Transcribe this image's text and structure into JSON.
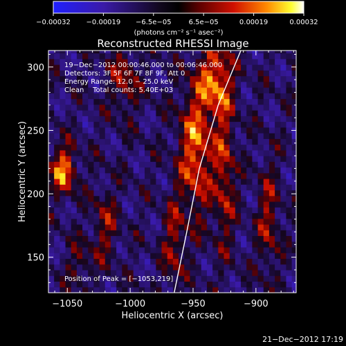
{
  "chart_data": {
    "type": "heatmap",
    "title": "Reconstructed RHESSI Image",
    "xlabel": "Heliocentric X (arcsec)",
    "ylabel": "Heliocentric Y (arcsec)",
    "xlim": [
      -1065,
      -868
    ],
    "ylim": [
      122,
      313
    ],
    "x_ticks": [
      -1050,
      -1000,
      -950,
      -900
    ],
    "x_tick_labels": [
      "−1050",
      "−1000",
      "−950",
      "−900"
    ],
    "y_ticks": [
      150,
      200,
      250,
      300
    ],
    "y_tick_labels": [
      "150",
      "200",
      "250",
      "300"
    ],
    "colorbar": {
      "min": -0.00032,
      "max": 0.00032,
      "colormap": "blue-black-red-yellow-white",
      "tick_labels": [
        "−0.00032",
        "−0.00019",
        "−6.5e−05",
        "6.5e−05",
        "0.00019",
        "0.00032"
      ],
      "units": "(photons cm⁻² s⁻¹ asec⁻²)"
    },
    "annotations": {
      "time_range": "19−Dec−2012 00:00:46.000 to 00:06:46.000",
      "detectors": "Detectors: 3F 5F 6F 7F 8F 9F, Att 0",
      "energy_range": "Energy Range: 12.0 − 25.0 keV",
      "method": "Clean    Total counts: 5.40E+03",
      "peak": "Position of Peak = [−1053,219]"
    },
    "limb_curve": [
      [
        -965,
        122
      ],
      [
        -955,
        170
      ],
      [
        -945,
        220
      ],
      [
        -930,
        270
      ],
      [
        -912,
        313
      ]
    ],
    "sources": [
      {
        "x": -1053,
        "y": 219,
        "sx": 7,
        "sy": 13,
        "amp": 0.9
      },
      {
        "x": -948,
        "y": 235,
        "sx": 9,
        "sy": 35,
        "amp": 0.85
      },
      {
        "x": -932,
        "y": 290,
        "sx": 9,
        "sy": 20,
        "amp": 0.85
      },
      {
        "x": -925,
        "y": 215,
        "sx": 6,
        "sy": 40,
        "amp": 0.6
      },
      {
        "x": -1005,
        "y": 290,
        "sx": 8,
        "sy": 18,
        "amp": 0.5
      },
      {
        "x": -1020,
        "y": 175,
        "sx": 7,
        "sy": 20,
        "amp": 0.45
      },
      {
        "x": -965,
        "y": 160,
        "sx": 6,
        "sy": 25,
        "amp": 0.5
      },
      {
        "x": -890,
        "y": 180,
        "sx": 6,
        "sy": 30,
        "amp": 0.5
      },
      {
        "x": -1040,
        "y": 145,
        "sx": 7,
        "sy": 12,
        "amp": 0.35
      }
    ]
  },
  "footer": {
    "date_stamp": "21−Dec−2012 17:19"
  }
}
